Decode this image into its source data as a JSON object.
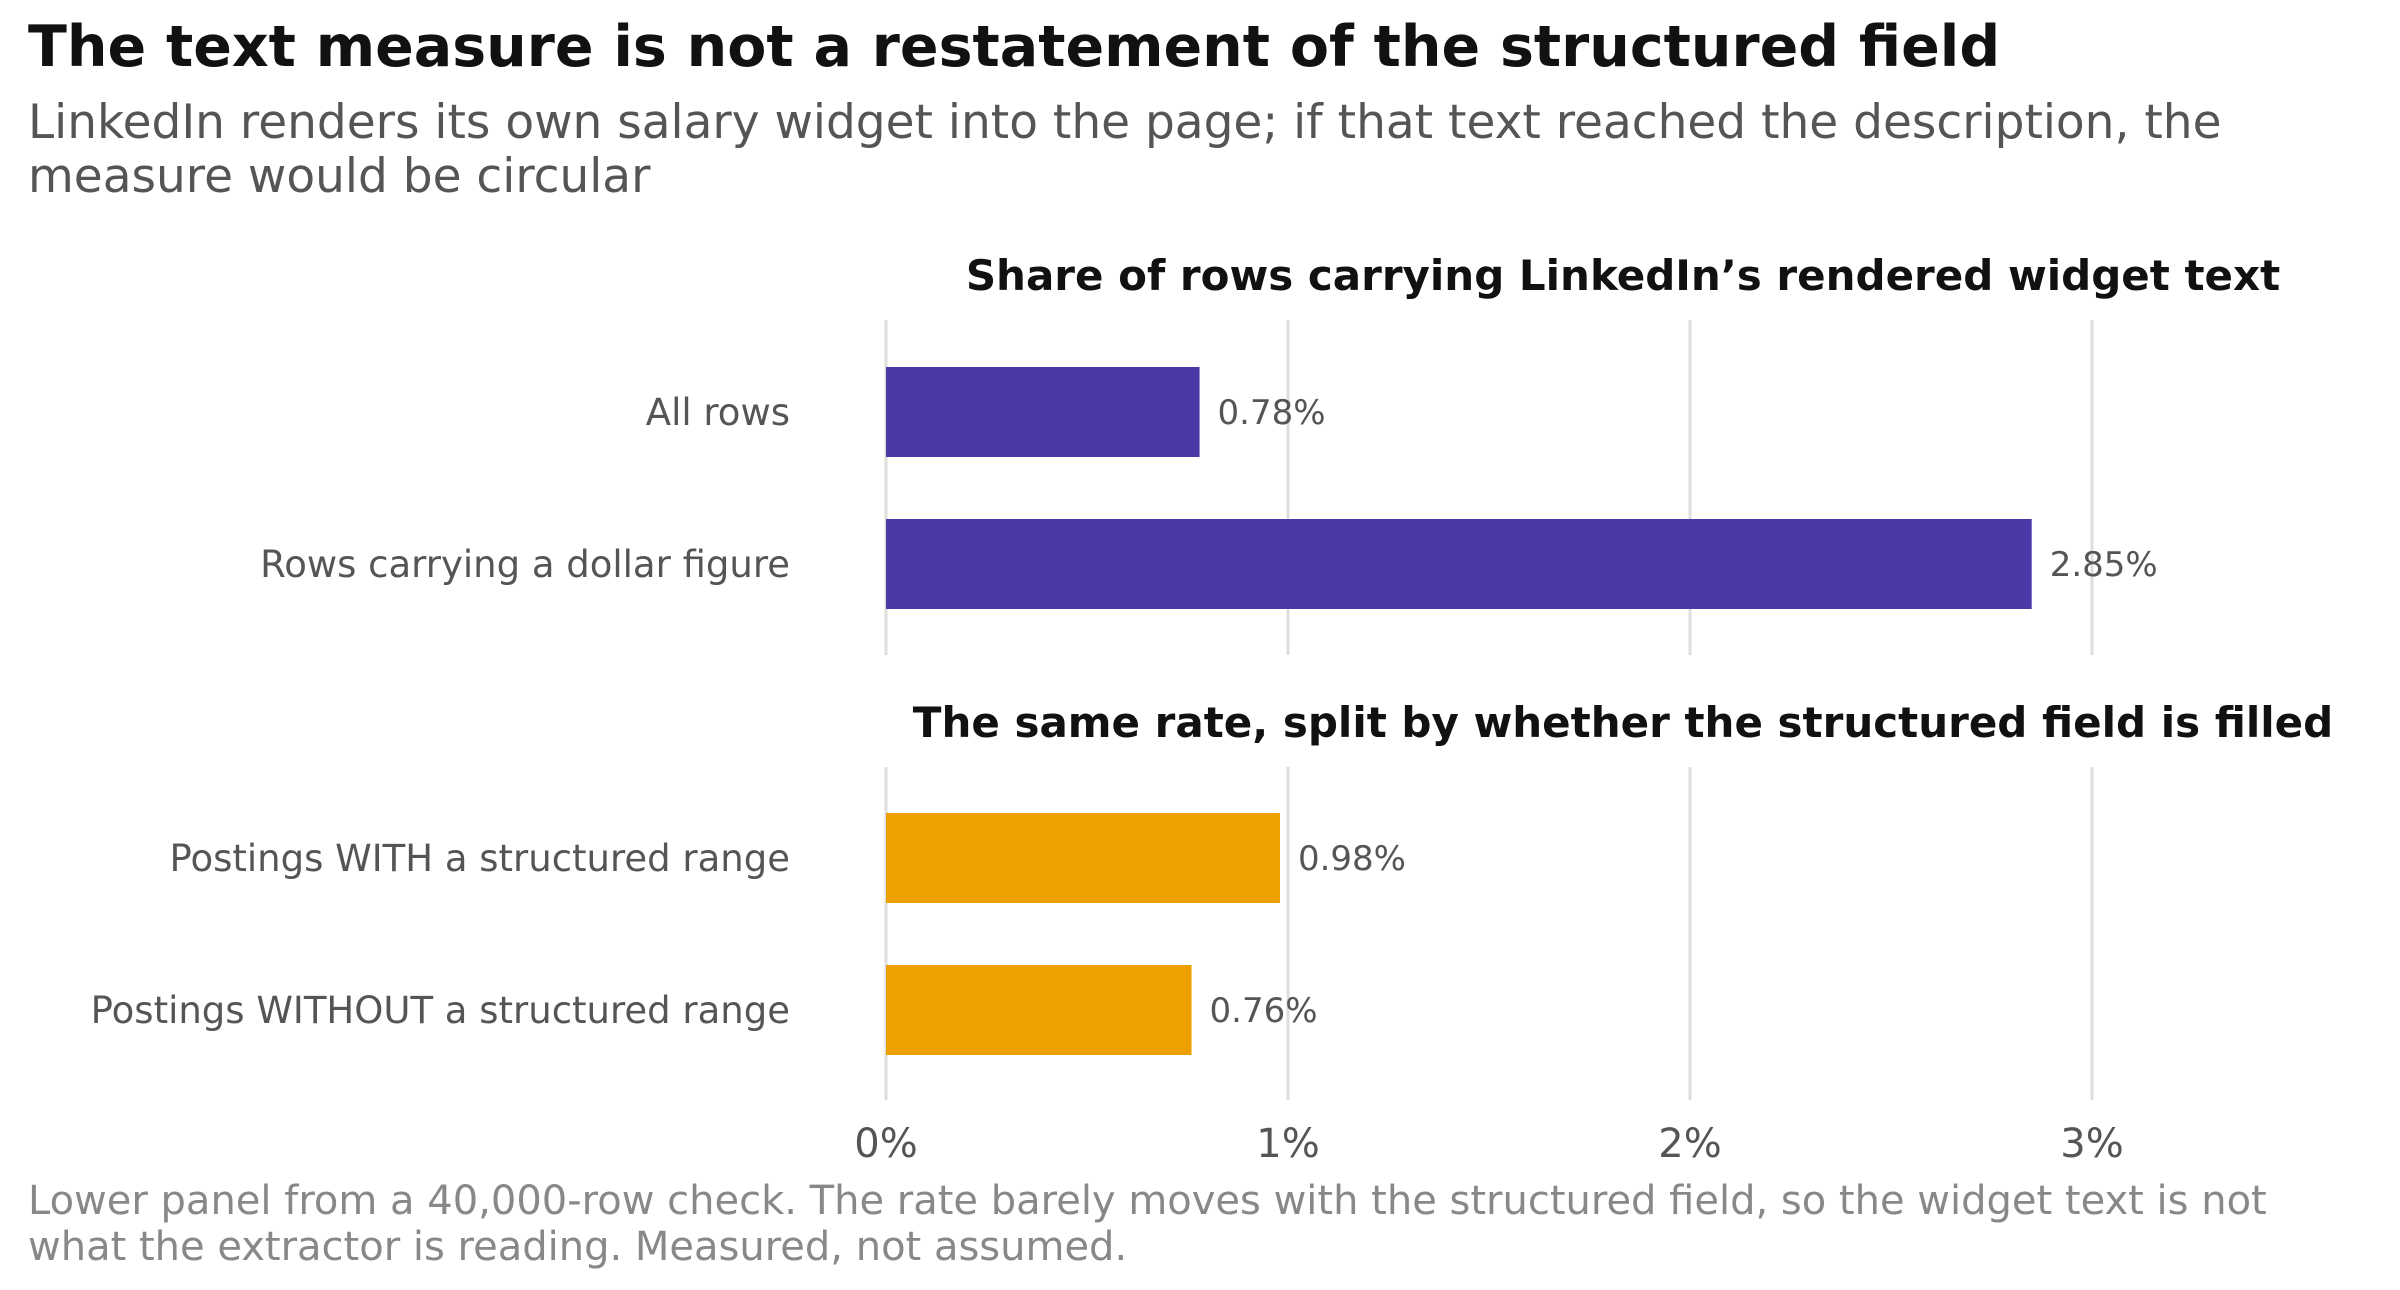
{
  "title": "The text measure is not a restatement of the structured field",
  "subtitle": "LinkedIn renders its own salary widget into the page; if that text reached the description, the measure would be circular",
  "caption": "Lower panel from a 40,000-row check. The rate barely moves with the structured field, so the widget text is not what the extractor is reading. Measured, not assumed.",
  "chart_data": [
    {
      "type": "bar",
      "orientation": "horizontal",
      "title": "Share of rows carrying LinkedIn’s rendered widget text",
      "categories": [
        "All rows",
        "Rows carrying a dollar figure"
      ],
      "values": [
        0.78,
        2.85
      ],
      "value_labels": [
        "0.78%",
        "2.85%"
      ],
      "color": "#4a3aa7",
      "xlim": [
        0,
        3.5
      ],
      "grid": true
    },
    {
      "type": "bar",
      "orientation": "horizontal",
      "title": "The same rate, split by whether the structured field is filled",
      "categories": [
        "Postings WITH a structured range",
        "Postings WITHOUT a structured range"
      ],
      "values": [
        0.98,
        0.76
      ],
      "value_labels": [
        "0.98%",
        "0.76%"
      ],
      "color": "#eca100",
      "xlim": [
        0,
        3.5
      ],
      "grid": true,
      "x_ticks": [
        0,
        1,
        2,
        3
      ],
      "x_tick_labels": [
        "0%",
        "1%",
        "2%",
        "3%"
      ]
    }
  ]
}
